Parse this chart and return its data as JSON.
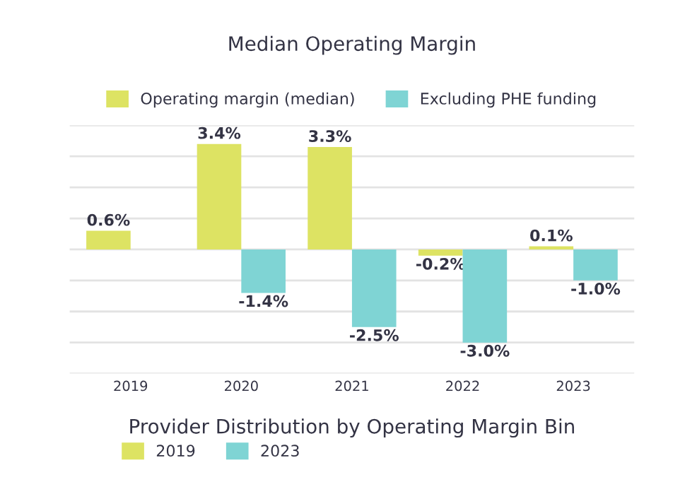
{
  "chart_data": [
    {
      "type": "bar",
      "title": "Median Operating Margin",
      "categories": [
        "2019",
        "2020",
        "2021",
        "2022",
        "2023"
      ],
      "series": [
        {
          "name": "Operating margin (median)",
          "color": "#dde363",
          "values": [
            0.6,
            3.4,
            3.3,
            -0.2,
            0.1
          ],
          "value_labels": [
            "0.6%",
            "3.4%",
            "3.3%",
            "-0.2%",
            "0.1%"
          ]
        },
        {
          "name": "Excluding PHE funding",
          "color": "#7fd4d4",
          "values": [
            null,
            -1.4,
            -2.5,
            -3.0,
            -1.0
          ],
          "value_labels": [
            null,
            "-1.4%",
            "-2.5%",
            "-3.0%",
            "-1.0%"
          ]
        }
      ],
      "ylim": [
        -4,
        4
      ],
      "yticks": [
        {
          "value": -4,
          "label": null
        },
        {
          "value": -3,
          "label": null
        },
        {
          "value": -2,
          "label": null
        },
        {
          "value": -1,
          "label": null
        },
        {
          "value": 0,
          "label": null
        },
        {
          "value": 1,
          "label": null
        },
        {
          "value": 2,
          "label": null
        },
        {
          "value": 3,
          "label": null
        },
        {
          "value": 4,
          "label": null
        }
      ],
      "grid": "y",
      "legend": "top",
      "tick_labels": "x"
    },
    {
      "type": "other",
      "title": "Provider Distribution by Operating Margin Bin",
      "series": [
        {
          "name": "2019",
          "color": "#dde363"
        },
        {
          "name": "2023",
          "color": "#7fd4d4"
        }
      ],
      "legend": "top left"
    }
  ]
}
